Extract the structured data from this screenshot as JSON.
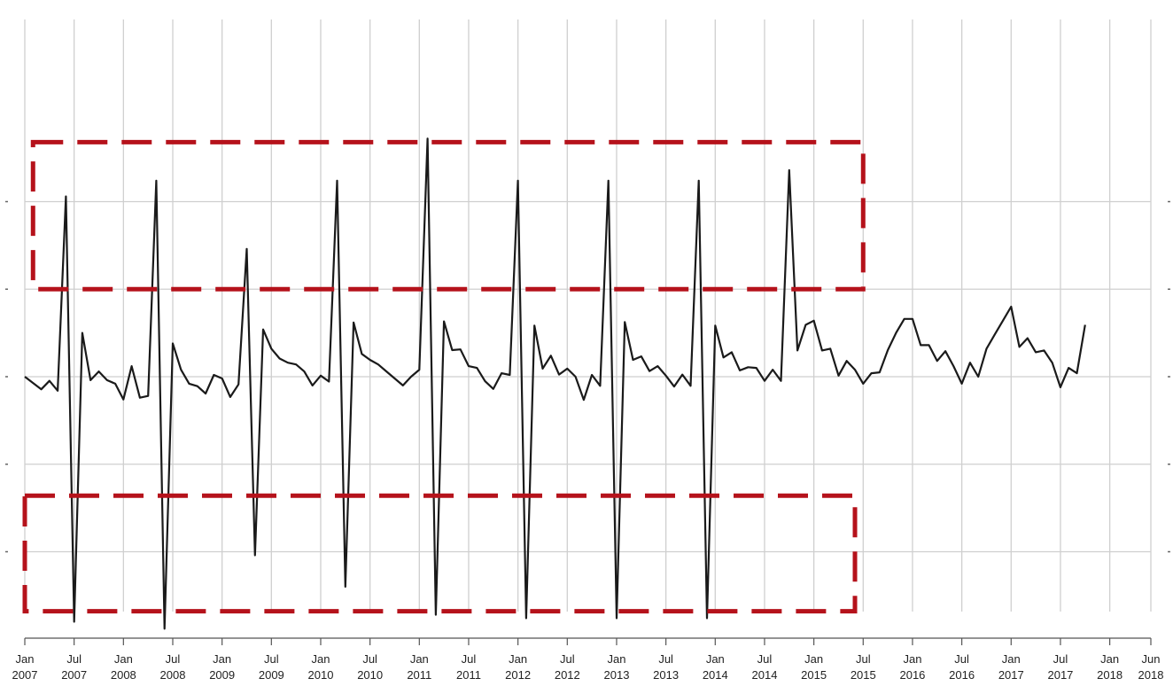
{
  "chart_data": {
    "type": "line",
    "title": "",
    "xlabel": "",
    "ylabel": "",
    "x_range": [
      "2007-01",
      "2018-06"
    ],
    "y_range": [
      -0.6,
      0.55
    ],
    "grid": true,
    "series": [
      {
        "color": "#1a1a1a",
        "x_start": "2007-01",
        "frequency": "monthly",
        "values": [
          0,
          -0.018,
          -0.036,
          -0.012,
          -0.04,
          0.515,
          -0.7,
          0.125,
          -0.01,
          0.015,
          -0.01,
          -0.02,
          -0.065,
          0.03,
          -0.06,
          -0.055,
          0.56,
          -0.72,
          0.095,
          0.02,
          -0.02,
          -0.027,
          -0.048,
          0.005,
          -0.005,
          -0.058,
          -0.022,
          0.365,
          -0.51,
          0.135,
          0.08,
          0.052,
          0.04,
          0.035,
          0.015,
          -0.025,
          0.003,
          -0.014,
          0.56,
          -0.6,
          0.155,
          0.065,
          0.048,
          0.035,
          0.015,
          -0.005,
          -0.025,
          0.0,
          0.02,
          0.68,
          -0.68,
          0.158,
          0.076,
          0.078,
          0.03,
          0.025,
          -0.013,
          -0.035,
          0.01,
          0.005,
          0.56,
          -0.69,
          0.146,
          0.023,
          0.06,
          0.006,
          0.023,
          0.0,
          -0.066,
          0.005,
          -0.026,
          0.56,
          -0.69,
          0.156,
          0.048,
          0.058,
          0.016,
          0.03,
          0.003,
          -0.028,
          0.006,
          -0.026,
          0.56,
          -0.69,
          0.146,
          0.055,
          0.07,
          0.018,
          0.027,
          0.025,
          -0.012,
          0.02,
          -0.012,
          0.59,
          0.075,
          0.148,
          0.16,
          0.075,
          0.08,
          0.003,
          0.045,
          0.02,
          -0.02,
          0.01,
          0.0125,
          0.076,
          0.125,
          0.165,
          0.165,
          0.09,
          0.09,
          0.045,
          0.073,
          0.03,
          -0.02,
          0.04,
          0.0,
          0.08,
          0.12,
          0.16,
          0.2,
          0.085,
          0.11,
          0.07,
          0.075,
          0.04,
          -0.03,
          0.025,
          0.01,
          0.148
        ]
      }
    ],
    "x_ticks": [
      {
        "month": "Jan",
        "year": "2007"
      },
      {
        "month": "Jul",
        "year": "2007"
      },
      {
        "month": "Jan",
        "year": "2008"
      },
      {
        "month": "Jul",
        "year": "2008"
      },
      {
        "month": "Jan",
        "year": "2009"
      },
      {
        "month": "Jul",
        "year": "2009"
      },
      {
        "month": "Jan",
        "year": "2010"
      },
      {
        "month": "Jul",
        "year": "2010"
      },
      {
        "month": "Jan",
        "year": "2011"
      },
      {
        "month": "Jul",
        "year": "2011"
      },
      {
        "month": "Jan",
        "year": "2012"
      },
      {
        "month": "Jul",
        "year": "2012"
      },
      {
        "month": "Jan",
        "year": "2013"
      },
      {
        "month": "Jul",
        "year": "2013"
      },
      {
        "month": "Jan",
        "year": "2014"
      },
      {
        "month": "Jul",
        "year": "2014"
      },
      {
        "month": "Jan",
        "year": "2015"
      },
      {
        "month": "Jul",
        "year": "2015"
      },
      {
        "month": "Jan",
        "year": "2016"
      },
      {
        "month": "Jul",
        "year": "2016"
      },
      {
        "month": "Jan",
        "year": "2017"
      },
      {
        "month": "Jul",
        "year": "2017"
      },
      {
        "month": "Jan",
        "year": "2018"
      },
      {
        "month": "Jun",
        "year": "2018"
      }
    ],
    "y_gridlines": [
      0.5,
      0.25,
      0.0,
      -0.25,
      -0.5
    ],
    "annotations": [
      {
        "type": "dashed-box",
        "color": "#b5121b",
        "label": "",
        "region": "seasonal-peaks",
        "x_from": "2007-02",
        "x_to": "2015-07",
        "y_from": 0.25,
        "y_to": 0.67
      },
      {
        "type": "dashed-box",
        "color": "#b5121b",
        "label": "",
        "region": "seasonal-troughs",
        "x_from": "2007-01",
        "x_to": "2015-06",
        "y_from": -0.67,
        "y_to": -0.34
      }
    ]
  }
}
